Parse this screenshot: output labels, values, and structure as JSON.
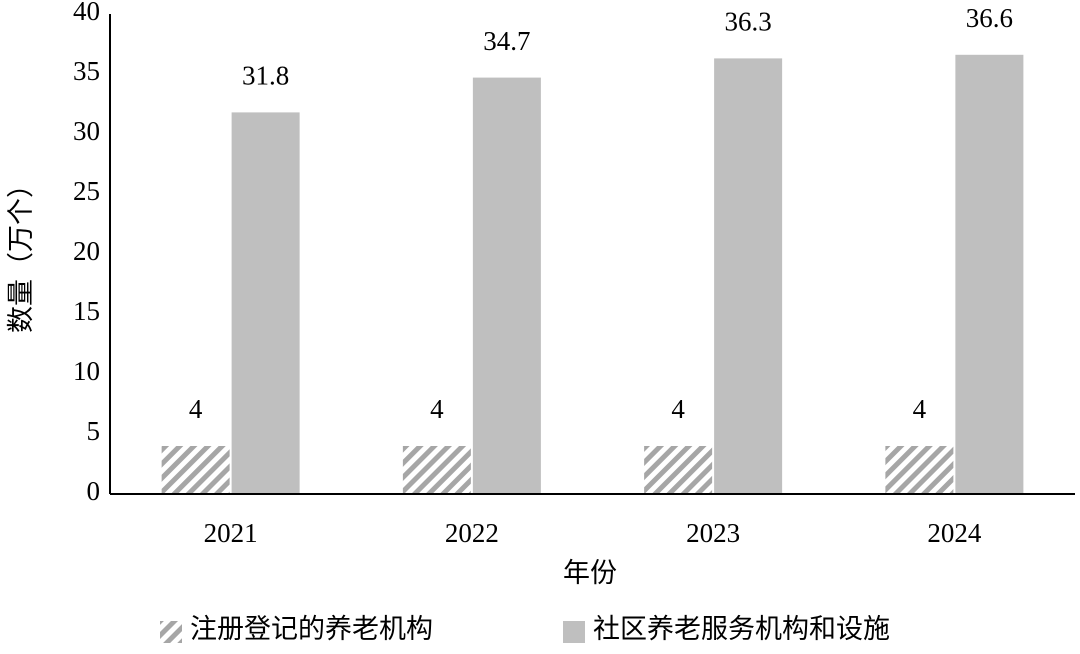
{
  "chart_data": {
    "type": "bar",
    "x_label": "年份",
    "y_label": "数量（万个）",
    "categories": [
      "2021",
      "2022",
      "2023",
      "2024"
    ],
    "series": [
      {
        "name": "注册登记的养老机构",
        "color": "#a6a6a6",
        "pattern": "hatch",
        "values": [
          4,
          4,
          4,
          4
        ]
      },
      {
        "name": "社区养老服务机构和设施",
        "color": "#bfbfbf",
        "values": [
          31.8,
          34.7,
          36.3,
          36.6
        ]
      }
    ],
    "ylim": [
      0,
      40
    ],
    "yticks": [
      0,
      5,
      10,
      15,
      20,
      25,
      30,
      35,
      40
    ],
    "grid": false,
    "legend": "bottom"
  }
}
